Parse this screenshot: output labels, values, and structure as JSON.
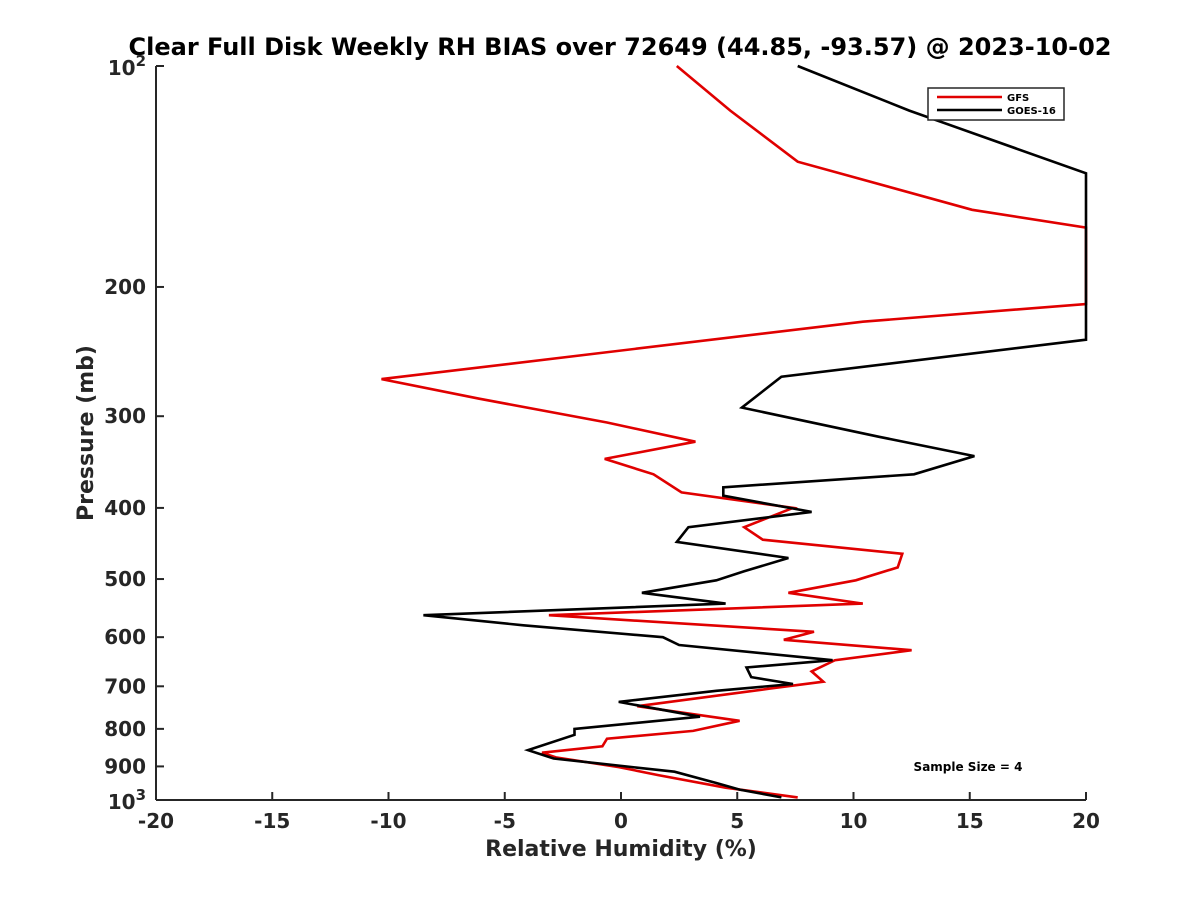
{
  "chart_data": {
    "type": "line",
    "title": "Clear Full Disk Weekly RH BIAS over 72649 (44.85, -93.57) @ 2023-10-02",
    "xlabel": "Relative Humidity (%)",
    "ylabel": "Pressure (mb)",
    "xlim": [
      -20,
      20
    ],
    "ylim": [
      1000,
      100
    ],
    "y_scale": "log",
    "x_ticks": [
      "-20",
      "-15",
      "-10",
      "-5",
      "0",
      "5",
      "10",
      "15",
      "20"
    ],
    "y_ticks": [
      {
        "value": 100,
        "base": "10",
        "exp": "2"
      },
      {
        "value": 200,
        "label": "200"
      },
      {
        "value": 300,
        "label": "300"
      },
      {
        "value": 400,
        "label": "400"
      },
      {
        "value": 500,
        "label": "500"
      },
      {
        "value": 600,
        "label": "600"
      },
      {
        "value": 700,
        "label": "700"
      },
      {
        "value": 800,
        "label": "800"
      },
      {
        "value": 900,
        "label": "900"
      },
      {
        "value": 1000,
        "base": "10",
        "exp": "3"
      }
    ],
    "grid": false,
    "legend_position": "top-right",
    "annotation": "Sample Size = 4",
    "series": [
      {
        "name": "GFS",
        "color": "#e00000",
        "points": [
          [
            2.4,
            100
          ],
          [
            4.7,
            115
          ],
          [
            7.6,
            135
          ],
          [
            15.1,
            157
          ],
          [
            20,
            166
          ],
          [
            20,
            211
          ],
          [
            10.4,
            223
          ],
          [
            -10.3,
            267
          ],
          [
            -6.1,
            284
          ],
          [
            -0.6,
            306
          ],
          [
            3.2,
            325
          ],
          [
            -0.7,
            343
          ],
          [
            1.4,
            360
          ],
          [
            2.6,
            381
          ],
          [
            7.4,
            400
          ],
          [
            5.3,
            425
          ],
          [
            6.1,
            442
          ],
          [
            12.1,
            462
          ],
          [
            11.9,
            482
          ],
          [
            10.1,
            502
          ],
          [
            7.2,
            522
          ],
          [
            10.4,
            540
          ],
          [
            -3.1,
            560
          ],
          [
            8.3,
            590
          ],
          [
            7.0,
            605
          ],
          [
            12.5,
            625
          ],
          [
            9.2,
            645
          ],
          [
            8.2,
            668
          ],
          [
            8.7,
            690
          ],
          [
            6.4,
            705
          ],
          [
            0.7,
            745
          ],
          [
            5.1,
            780
          ],
          [
            3.1,
            805
          ],
          [
            -0.6,
            825
          ],
          [
            -0.8,
            845
          ],
          [
            -3.4,
            862
          ],
          [
            -2.8,
            875
          ],
          [
            -0.1,
            902
          ],
          [
            1.6,
            925
          ],
          [
            4.5,
            962
          ],
          [
            7.6,
            992
          ]
        ]
      },
      {
        "name": "GOES-16",
        "color": "#000000",
        "points": [
          [
            7.6,
            100
          ],
          [
            12.4,
            115
          ],
          [
            20,
            140
          ],
          [
            20,
            236
          ],
          [
            6.9,
            265
          ],
          [
            5.2,
            292
          ],
          [
            11.1,
            320
          ],
          [
            15.2,
            340
          ],
          [
            12.6,
            360
          ],
          [
            4.4,
            375
          ],
          [
            4.4,
            385
          ],
          [
            8.2,
            405
          ],
          [
            2.9,
            425
          ],
          [
            2.4,
            445
          ],
          [
            7.2,
            468
          ],
          [
            5.3,
            488
          ],
          [
            4.1,
            502
          ],
          [
            0.9,
            522
          ],
          [
            4.5,
            540
          ],
          [
            -8.5,
            560
          ],
          [
            -4.2,
            578
          ],
          [
            1.8,
            600
          ],
          [
            2.5,
            615
          ],
          [
            9.1,
            645
          ],
          [
            5.4,
            660
          ],
          [
            5.6,
            680
          ],
          [
            7.4,
            695
          ],
          [
            4.1,
            710
          ],
          [
            -0.1,
            735
          ],
          [
            3.4,
            770
          ],
          [
            -2.0,
            800
          ],
          [
            -2.0,
            815
          ],
          [
            -4.0,
            855
          ],
          [
            -2.9,
            878
          ],
          [
            2.3,
            915
          ],
          [
            4.1,
            948
          ],
          [
            5.1,
            968
          ],
          [
            6.9,
            992
          ]
        ]
      }
    ]
  }
}
